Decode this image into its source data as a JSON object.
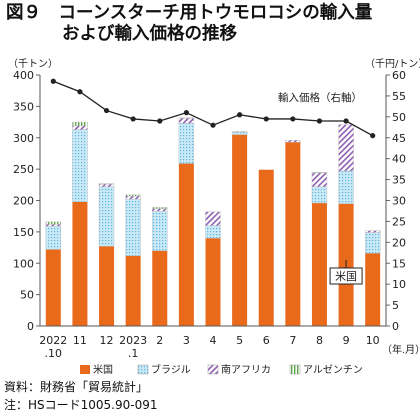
{
  "title": {
    "label": "図９",
    "line1": "コーンスターチ用トウモロコシの輸入量",
    "line2": "および輸入価格の推移"
  },
  "chart_data": {
    "type": "bar",
    "categories": [
      "2022\n.10",
      "11",
      "12",
      "2023\n.1",
      "2",
      "3",
      "4",
      "5",
      "6",
      "7",
      "8",
      "9",
      "10"
    ],
    "x_unit": "（年.月）",
    "y_left": {
      "unit": "（千トン）",
      "ylim": [
        0,
        400
      ],
      "ticks": [
        0,
        50,
        100,
        150,
        200,
        250,
        300,
        350,
        400
      ]
    },
    "y_right": {
      "unit": "（千円/トン）",
      "ylim": [
        0,
        60
      ],
      "ticks": [
        0,
        5,
        10,
        15,
        20,
        25,
        30,
        35,
        40,
        45,
        50,
        55,
        60
      ]
    },
    "stacked_series": [
      {
        "name": "米国",
        "color": "#ea6a1c",
        "pattern": "solid",
        "values": [
          122,
          198,
          127,
          112,
          120,
          259,
          140,
          305,
          249,
          293,
          196,
          195,
          116
        ]
      },
      {
        "name": "ブラジル",
        "color": "#9fd6ef",
        "pattern": "dots",
        "values": [
          37,
          115,
          95,
          90,
          63,
          64,
          20,
          4,
          0,
          0,
          26,
          52,
          33
        ]
      },
      {
        "name": "南アフリカ",
        "color": "#8e5fb0",
        "pattern": "hatch",
        "values": [
          3,
          6,
          4,
          5,
          4,
          8,
          22,
          1,
          0,
          3,
          22,
          74,
          3
        ]
      },
      {
        "name": "アルゼンチン",
        "color": "#5aa546",
        "pattern": "vlines",
        "values": [
          4,
          6,
          1,
          2,
          2,
          1,
          0,
          0,
          0,
          0,
          1,
          0,
          0
        ]
      }
    ],
    "line_series": {
      "name": "輸入価格（右軸）",
      "axis": "right",
      "values": [
        58.5,
        56,
        51.5,
        49.5,
        49,
        51,
        48,
        50.5,
        49.5,
        49.5,
        49,
        49,
        45.5
      ]
    },
    "annotation": {
      "text": "米国",
      "bar": 11
    },
    "legend": {
      "placement": "bottom"
    }
  },
  "source": {
    "line1": "資料：財務省「貿易統計」",
    "line2": "注：HSコード1005.90-091"
  }
}
